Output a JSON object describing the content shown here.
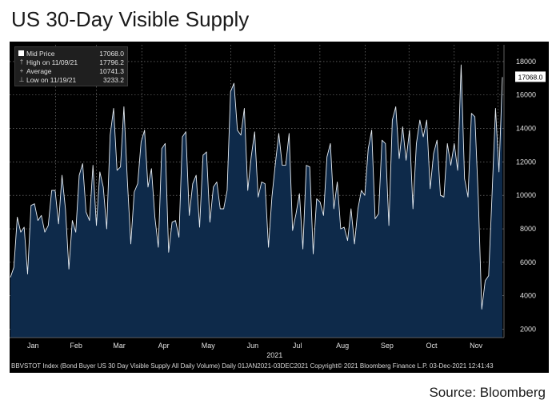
{
  "page": {
    "title": "US 30-Day Visible Supply",
    "source": "Source: Bloomberg"
  },
  "chart_data": {
    "type": "area",
    "title": "",
    "xlabel": "2021",
    "ylabel": "",
    "ylim": [
      1500,
      19000
    ],
    "yticks": [
      2000,
      4000,
      6000,
      8000,
      10000,
      12000,
      14000,
      16000,
      18000
    ],
    "ytick_labels": [
      "2000",
      "4000",
      "6000",
      "8000",
      "10000",
      "12000",
      "14000",
      "16000",
      "18000"
    ],
    "month_labels": [
      "Jan",
      "Feb",
      "Mar",
      "Apr",
      "May",
      "Jun",
      "Jul",
      "Aug",
      "Sep",
      "Oct",
      "Nov"
    ],
    "year_label": "2021",
    "grid": true,
    "legend_position": "top-left",
    "colors": {
      "area_fill": "#0e2a4a",
      "line": "#e6ecf2",
      "background": "#000000",
      "grid": "#8a8a8a",
      "text": "#e0e0e0"
    },
    "legend": [
      {
        "glyph": "square",
        "label": "Mid Price",
        "value": "17068.0"
      },
      {
        "glyph": "high",
        "label": "High on 11/09/21",
        "value": "17796.2"
      },
      {
        "glyph": "avg",
        "label": "Average",
        "value": "10741.3"
      },
      {
        "glyph": "low",
        "label": "Low on 11/19/21",
        "value": "3233.2"
      }
    ],
    "last_value_label": "17068.0",
    "footer": "BBVSTOT Index (Bond Buyer US 30 Day Visible Supply All Daily Volume) Daily 01JAN2021-03DEC2021 Copyright© 2021 Bloomberg Finance L.P. 03-Dec-2021 12:41:43",
    "series": [
      {
        "values": [
          5100,
          5700,
          8700,
          7800,
          8100,
          5300,
          9400,
          9500,
          8500,
          8800,
          7800,
          8200,
          10300,
          10300,
          8300,
          11200,
          9200,
          5600,
          8500,
          7800,
          11200,
          11900,
          9000,
          8500,
          11800,
          8200,
          11400,
          10500,
          8000,
          13600,
          15200,
          11500,
          11700,
          15300,
          10900,
          7100,
          10200,
          10700,
          13200,
          13900,
          10500,
          11600,
          8700,
          6900,
          12800,
          13100,
          6600,
          8400,
          8500,
          7500,
          13500,
          13800,
          8800,
          10700,
          11200,
          8100,
          12400,
          12600,
          8400,
          10500,
          10800,
          9200,
          9200,
          10300,
          16200,
          16700,
          13900,
          13600,
          15200,
          10300,
          12300,
          13800,
          9900,
          10800,
          10700,
          6900,
          9900,
          11900,
          13700,
          11800,
          11800,
          13700,
          7900,
          8900,
          10100,
          6800,
          11800,
          11700,
          6500,
          9800,
          9600,
          8800,
          12300,
          13100,
          9200,
          10800,
          8000,
          8100,
          7300,
          9200,
          7100,
          9200,
          10300,
          10000,
          12800,
          13900,
          8600,
          8900,
          13300,
          13100,
          8200,
          14500,
          15300,
          12200,
          14100,
          12100,
          13900,
          9200,
          13100,
          14500,
          13500,
          14500,
          10400,
          12500,
          13300,
          10000,
          9900,
          13100,
          11800,
          13100,
          11500,
          17800,
          11000,
          9900,
          14900,
          14700,
          9800,
          3200,
          4900,
          5200,
          10100,
          15200,
          11400,
          17068
        ]
      }
    ]
  }
}
